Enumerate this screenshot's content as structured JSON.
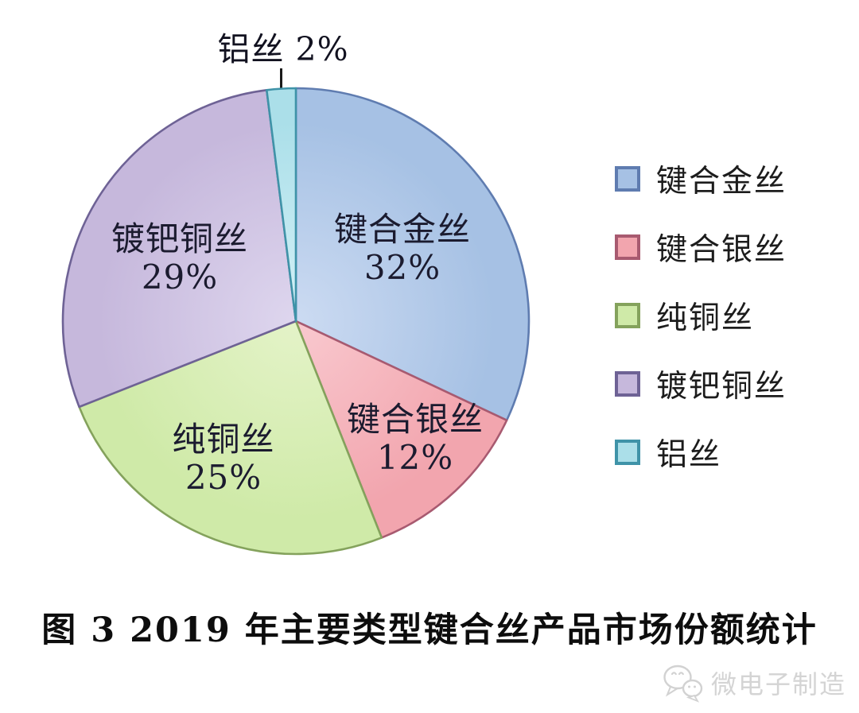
{
  "figure": {
    "caption": "图 3  2019 年主要类型键合丝产品市场份额统计",
    "watermark": {
      "text": "微电子制造",
      "icon": "wechat-chat-bubbles-icon",
      "color": "#d4d4d4"
    }
  },
  "chart_data": {
    "type": "pie",
    "title": "图 3 2019 年主要类型键合丝产品市场份额统计",
    "unit": "percent",
    "start_angle_deg": 0,
    "direction": "clockwise",
    "grid": false,
    "legend_position": "right",
    "outside_label": "铝丝 2%",
    "categories": [
      "键合金丝",
      "键合银丝",
      "纯铜丝",
      "镀钯铜丝",
      "铝丝"
    ],
    "values": [
      32,
      12,
      25,
      29,
      2
    ],
    "slices": [
      {
        "label": "键合金丝",
        "value_pct": 32,
        "display": "键合金丝\n32%",
        "fill": "#a6c1e4",
        "light": "#ccdbf2",
        "edge": "#5f7cb0",
        "label_inside": true
      },
      {
        "label": "键合银丝",
        "value_pct": 12,
        "display": "键合银丝\n12%",
        "fill": "#f2a5ae",
        "light": "#f9c9cf",
        "edge": "#a85a70",
        "label_inside": true
      },
      {
        "label": "纯铜丝",
        "value_pct": 25,
        "display": "纯铜丝\n25%",
        "fill": "#cfeaa8",
        "light": "#e4f3c8",
        "edge": "#84a25c",
        "label_inside": true
      },
      {
        "label": "镀钯铜丝",
        "value_pct": 29,
        "display": "镀钯铜丝\n29%",
        "fill": "#c6b8dc",
        "light": "#ded6ee",
        "edge": "#6e6295",
        "label_inside": true
      },
      {
        "label": "铝丝",
        "value_pct": 2,
        "display": "铝丝 2%",
        "fill": "#abdfe9",
        "light": "#d4f1f7",
        "edge": "#3f93a8",
        "label_inside": false
      }
    ]
  }
}
